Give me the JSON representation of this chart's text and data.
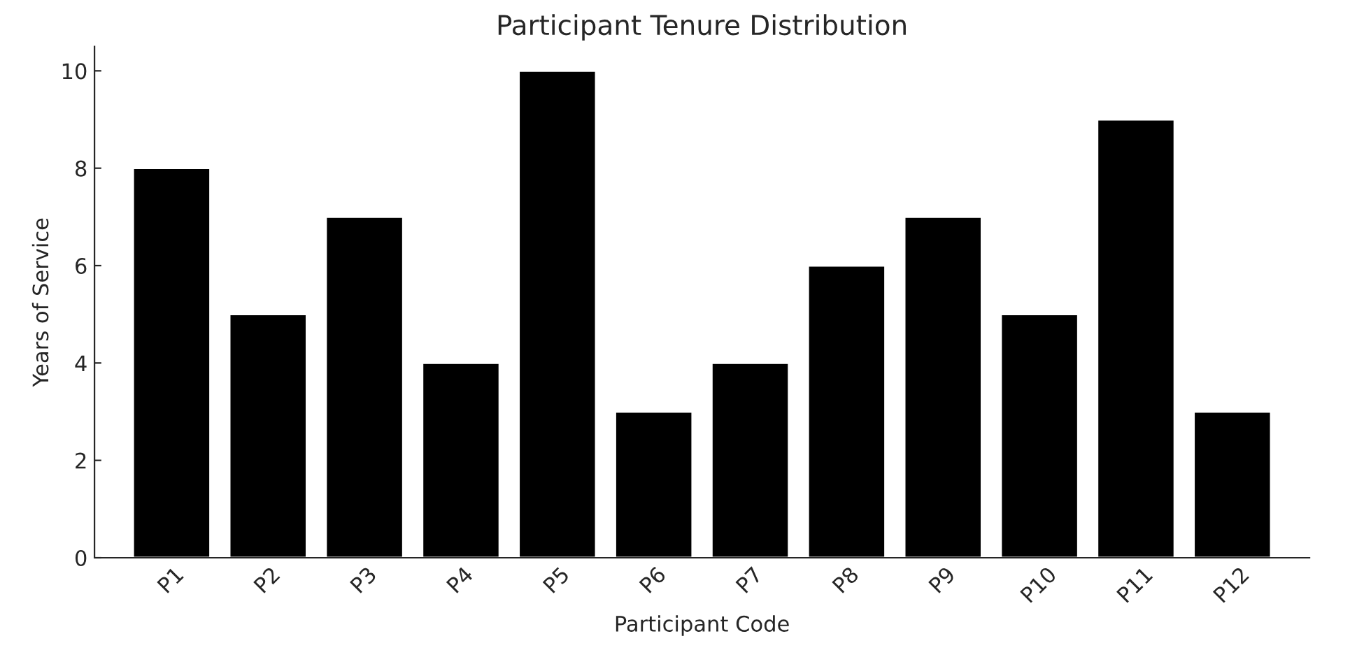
{
  "chart_data": {
    "type": "bar",
    "title": "Participant Tenure Distribution",
    "xlabel": "Participant Code",
    "ylabel": "Years of Service",
    "categories": [
      "P1",
      "P2",
      "P3",
      "P4",
      "P5",
      "P6",
      "P7",
      "P8",
      "P9",
      "P10",
      "P11",
      "P12"
    ],
    "values": [
      8,
      5,
      7,
      4,
      10,
      3,
      4,
      6,
      7,
      5,
      9,
      3
    ],
    "color": "#000000",
    "ylim": [
      0,
      10.5
    ],
    "yticks": [
      0,
      2,
      4,
      6,
      8,
      10
    ],
    "grid": false,
    "legend": false
  }
}
